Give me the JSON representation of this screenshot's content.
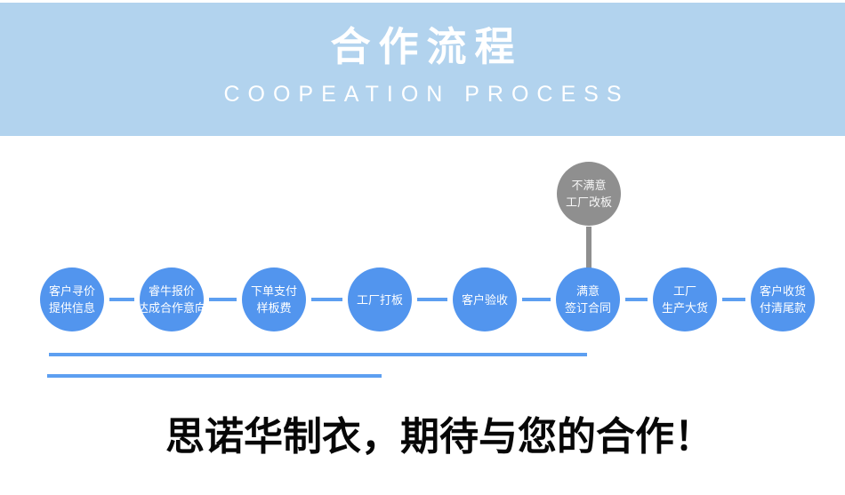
{
  "header": {
    "title": "合作流程",
    "subtitle": "COOPEATION PROCESS",
    "bg_color": "#b2d3ee",
    "title_color": "#ffffff",
    "subtitle_color": "#ffffff"
  },
  "flow": {
    "steps": [
      {
        "line1": "客户寻价",
        "line2": "提供信息"
      },
      {
        "line1": "睿牛报价",
        "line2": "达成合作意向"
      },
      {
        "line1": "下单支付",
        "line2": "样板费"
      },
      {
        "line1": "工厂打板",
        "line2": ""
      },
      {
        "line1": "客户验收",
        "line2": ""
      },
      {
        "line1": "满意",
        "line2": "签订合同"
      },
      {
        "line1": "工厂",
        "line2": "生产大货"
      },
      {
        "line1": "客户收货",
        "line2": "付清尾款"
      }
    ],
    "alt_step": {
      "line1": "不满意",
      "line2": "工厂改板"
    },
    "circle_color": "#5295ee",
    "alt_circle_color": "#8f8f8f",
    "connector_color": "#5d9ff1",
    "divider_color": "#5d9ff1"
  },
  "footer": {
    "slogan": "思诺华制衣，期待与您的合作！"
  }
}
